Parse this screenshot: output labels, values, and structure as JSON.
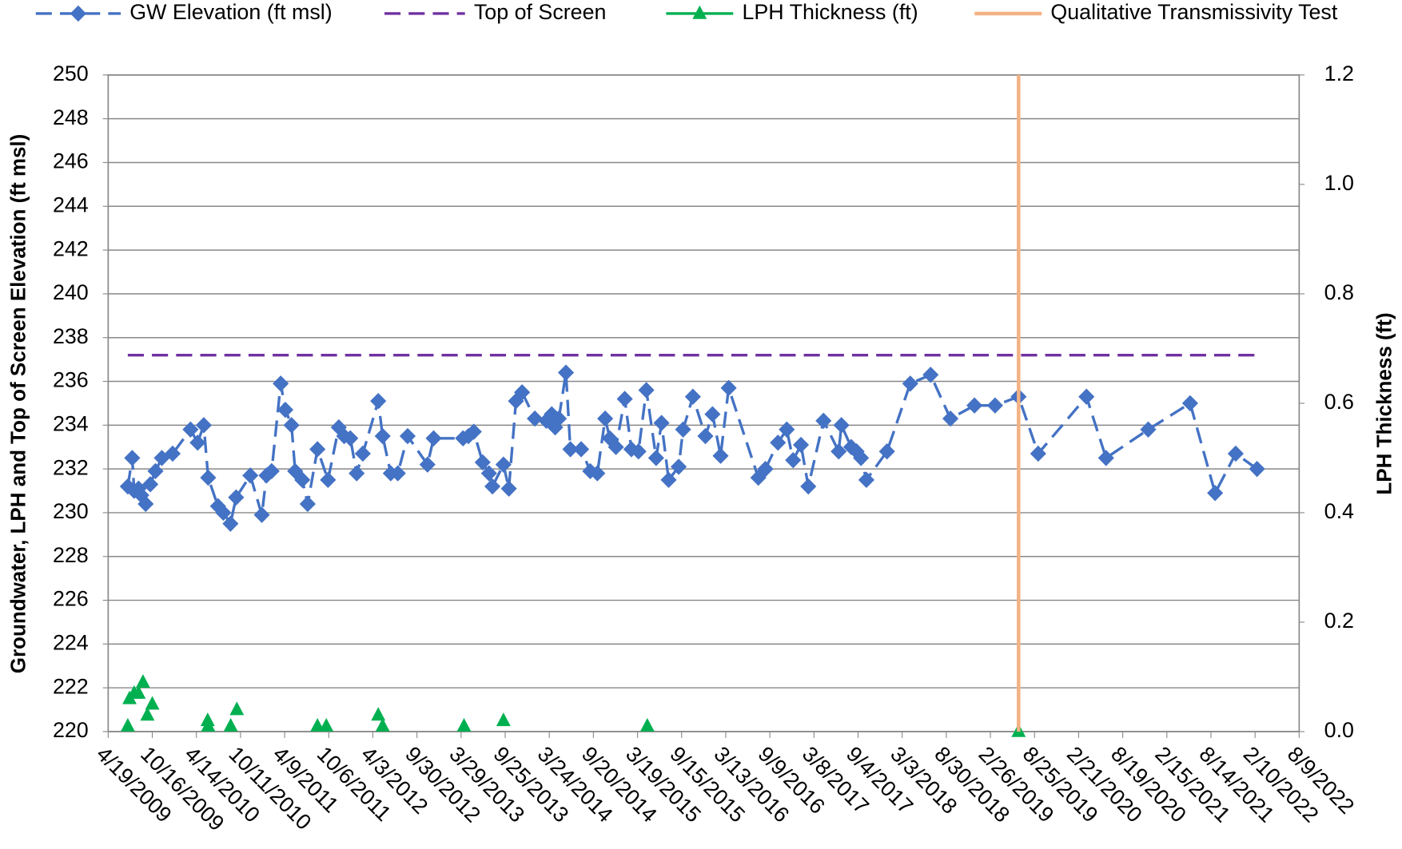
{
  "chart_data": {
    "type": "line",
    "ylabel": "Groundwater, LPH and Top of Screen Elevation (ft msl)",
    "y2label": "LPH Thickness (ft)",
    "xlim": [
      "2009-04-19",
      "2022-08-09"
    ],
    "xticks": [
      {
        "value": "2009-04-19",
        "label": "4/19/2009"
      },
      {
        "value": "2009-10-16",
        "label": "10/16/2009"
      },
      {
        "value": "2010-04-14",
        "label": "4/14/2010"
      },
      {
        "value": "2010-10-11",
        "label": "10/11/2010"
      },
      {
        "value": "2011-04-09",
        "label": "4/9/2011"
      },
      {
        "value": "2011-10-06",
        "label": "10/6/2011"
      },
      {
        "value": "2012-04-03",
        "label": "4/3/2012"
      },
      {
        "value": "2012-09-30",
        "label": "9/30/2012"
      },
      {
        "value": "2013-03-29",
        "label": "3/29/2013"
      },
      {
        "value": "2013-09-25",
        "label": "9/25/2013"
      },
      {
        "value": "2014-03-24",
        "label": "3/24/2014"
      },
      {
        "value": "2014-09-20",
        "label": "9/20/2014"
      },
      {
        "value": "2015-03-19",
        "label": "3/19/2015"
      },
      {
        "value": "2015-09-15",
        "label": "9/15/2015"
      },
      {
        "value": "2016-03-13",
        "label": "3/13/2016"
      },
      {
        "value": "2016-09-09",
        "label": "9/9/2016"
      },
      {
        "value": "2017-03-08",
        "label": "3/8/2017"
      },
      {
        "value": "2017-09-04",
        "label": "9/4/2017"
      },
      {
        "value": "2018-03-03",
        "label": "3/3/2018"
      },
      {
        "value": "2018-08-30",
        "label": "8/30/2018"
      },
      {
        "value": "2019-02-26",
        "label": "2/26/2019"
      },
      {
        "value": "2019-08-25",
        "label": "8/25/2019"
      },
      {
        "value": "2020-02-21",
        "label": "2/21/2020"
      },
      {
        "value": "2020-08-19",
        "label": "8/19/2020"
      },
      {
        "value": "2021-02-15",
        "label": "2/15/2021"
      },
      {
        "value": "2021-08-14",
        "label": "8/14/2021"
      },
      {
        "value": "2022-02-10",
        "label": "2/10/2022"
      },
      {
        "value": "2022-08-09",
        "label": "8/9/2022"
      }
    ],
    "ylim": [
      220,
      250
    ],
    "yticks": [
      220,
      222,
      224,
      226,
      228,
      230,
      232,
      234,
      236,
      238,
      240,
      242,
      244,
      246,
      248,
      250
    ],
    "y2lim": [
      0,
      1.2
    ],
    "y2ticks": [
      {
        "value": 0,
        "label": "0.0"
      },
      0.2,
      0.4,
      0.6,
      0.8,
      {
        "value": 1,
        "label": "1.0"
      },
      1.2
    ],
    "grid": true,
    "legend": "top",
    "series": [
      {
        "name": "GW Elevation (ft msl)",
        "color": "#4472c4",
        "marker": "diamond",
        "dash": true,
        "x": [
          "2009-07-08",
          "2009-07-26",
          "2009-08-03",
          "2009-08-21",
          "2009-09-01",
          "2009-09-19",
          "2009-10-08",
          "2009-10-29",
          "2009-11-24",
          "2010-01-07",
          "2010-03-21",
          "2010-04-19",
          "2010-05-14",
          "2010-06-01",
          "2010-07-11",
          "2010-08-02",
          "2010-08-31",
          "2010-09-23",
          "2010-11-20",
          "2011-01-06",
          "2011-01-25",
          "2011-02-15",
          "2011-03-24",
          "2011-04-12",
          "2011-05-07",
          "2011-05-22",
          "2011-06-20",
          "2011-07-12",
          "2011-08-21",
          "2011-10-03",
          "2011-11-16",
          "2011-12-08",
          "2012-01-02",
          "2012-01-28",
          "2012-02-22",
          "2012-04-25",
          "2012-05-13",
          "2012-06-15",
          "2012-07-14",
          "2012-08-23",
          "2012-11-12",
          "2012-12-07",
          "2013-04-06",
          "2013-04-28",
          "2013-05-20",
          "2013-06-25",
          "2013-07-21",
          "2013-08-04",
          "2013-09-18",
          "2013-10-10",
          "2013-11-08",
          "2013-12-03",
          "2014-01-24",
          "2014-03-12",
          "2014-04-03",
          "2014-04-17",
          "2014-05-02",
          "2014-05-31",
          "2014-06-18",
          "2014-08-01",
          "2014-09-07",
          "2014-10-06",
          "2014-11-07",
          "2014-11-26",
          "2014-12-21",
          "2015-01-26",
          "2015-02-22",
          "2015-03-23",
          "2015-04-24",
          "2015-06-03",
          "2015-06-25",
          "2015-07-24",
          "2015-09-03",
          "2015-09-21",
          "2015-10-31",
          "2015-12-21",
          "2016-01-19",
          "2016-02-21",
          "2016-03-25",
          "2016-07-24",
          "2016-08-22",
          "2016-10-12",
          "2016-11-17",
          "2016-12-13",
          "2017-01-14",
          "2017-02-13",
          "2017-04-16",
          "2017-06-17",
          "2017-06-28",
          "2017-08-07",
          "2017-08-29",
          "2017-09-16",
          "2017-10-08",
          "2017-12-31",
          "2018-04-05",
          "2018-06-27",
          "2018-09-16",
          "2018-12-23",
          "2019-03-17",
          "2019-06-21",
          "2019-09-09",
          "2020-03-24",
          "2020-06-12",
          "2020-12-01",
          "2021-05-21",
          "2021-08-31",
          "2021-11-23",
          "2022-02-18"
        ],
        "values": [
          231.2,
          232.5,
          231.0,
          231.1,
          230.8,
          230.4,
          231.3,
          231.9,
          232.5,
          232.7,
          233.8,
          233.2,
          234.0,
          231.6,
          230.3,
          230.0,
          229.5,
          230.7,
          231.7,
          229.9,
          231.7,
          231.9,
          235.9,
          234.7,
          234.0,
          231.9,
          231.5,
          230.4,
          232.9,
          231.5,
          233.9,
          233.5,
          233.4,
          231.8,
          232.7,
          235.1,
          233.5,
          231.8,
          231.8,
          233.5,
          232.2,
          233.4,
          233.4,
          233.5,
          233.7,
          232.3,
          231.8,
          231.2,
          232.2,
          231.1,
          235.1,
          235.5,
          234.3,
          234.2,
          234.5,
          233.9,
          234.3,
          236.4,
          232.9,
          232.9,
          231.9,
          231.8,
          234.3,
          233.4,
          233.0,
          235.2,
          232.9,
          232.8,
          235.6,
          232.5,
          234.1,
          231.5,
          232.1,
          233.8,
          235.3,
          233.5,
          234.5,
          232.6,
          235.7,
          231.6,
          232.0,
          233.2,
          233.8,
          232.4,
          233.1,
          231.2,
          234.2,
          232.8,
          234.0,
          233.0,
          232.8,
          232.5,
          231.5,
          232.8,
          235.9,
          236.3,
          234.3,
          234.9,
          234.9,
          235.3,
          232.7,
          235.3,
          232.5,
          233.8,
          235.0,
          230.9,
          232.7,
          232.0
        ]
      },
      {
        "name": "Top of Screen",
        "color": "#7030a0",
        "dash": true,
        "x": [
          "2009-07-08",
          "2022-02-18"
        ],
        "values": [
          237.2,
          237.2
        ]
      },
      {
        "name": "LPH Thickness (ft)",
        "color": "#00b050",
        "marker": "triangle",
        "axis": "y2",
        "line": false,
        "x": [
          "2009-07-08",
          "2009-07-15",
          "2009-08-03",
          "2009-08-21",
          "2009-09-08",
          "2009-09-26",
          "2009-10-16",
          "2010-05-30",
          "2010-06-01",
          "2010-09-01",
          "2010-09-26",
          "2011-08-21",
          "2011-09-26",
          "2012-04-25",
          "2012-05-13",
          "2013-04-10",
          "2013-09-18",
          "2015-04-28",
          "2019-06-21"
        ],
        "values": [
          0.01,
          0.06,
          0.07,
          0.07,
          0.09,
          0.03,
          0.05,
          0.02,
          0.01,
          0.01,
          0.04,
          0.01,
          0.01,
          0.03,
          0.01,
          0.01,
          0.02,
          0.01,
          0
        ]
      },
      {
        "name": "Qualitative Transmissivity Test",
        "color": "#f4b183",
        "vertical": true,
        "x": [
          "2019-06-21"
        ]
      }
    ]
  }
}
